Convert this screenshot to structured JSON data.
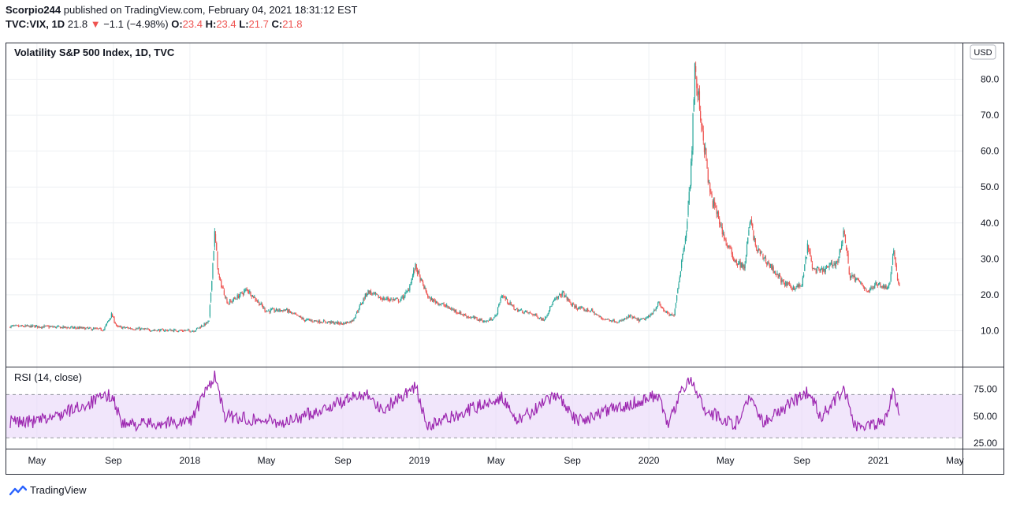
{
  "header": {
    "author": "Scorpio244",
    "published_text": "published on TradingView.com, February 04, 2021 18:31:12 EST",
    "symbol": "TVC:VIX, 1D",
    "last": "21.8",
    "change_arrow": "▼",
    "change": "−1.1 (−4.98%)",
    "open_label": "O:",
    "open": "23.4",
    "high_label": "H:",
    "high": "23.4",
    "low_label": "L:",
    "low": "21.7",
    "close_label": "C:",
    "close": "21.8"
  },
  "colors": {
    "up": "#26a69a",
    "down": "#ef5350",
    "rsi_line": "#9c27b0",
    "rsi_band": "#e8d5f8",
    "grid": "#eef0f3",
    "border": "#2a2e39"
  },
  "footer": {
    "brand": "TradingView",
    "logo_icon": "tradingview-logo-icon"
  },
  "chart_data": [
    {
      "type": "candlestick",
      "title": "Volatility S&P 500 Index, 1D, TVC",
      "currency": "USD",
      "y_ticks": [
        "10.0",
        "20.0",
        "30.0",
        "40.0",
        "50.0",
        "60.0",
        "70.0",
        "80.0"
      ],
      "ylim": [
        0,
        90
      ],
      "x_ticks": [
        "May",
        "Sep",
        "2018",
        "May",
        "Sep",
        "2019",
        "May",
        "Sep",
        "2020",
        "May",
        "Sep",
        "2021",
        "May"
      ],
      "x_tick_months": [
        0,
        4,
        8,
        12,
        16,
        20,
        24,
        28,
        32,
        36,
        40,
        44,
        48
      ],
      "x_range_months": [
        0,
        48.4
      ],
      "data_end_month": 45.1,
      "grid": true,
      "close_keyframes": [
        [
          0,
          11.2
        ],
        [
          2,
          10.8
        ],
        [
          3.5,
          10.3
        ],
        [
          3.9,
          14.5
        ],
        [
          4.2,
          11.0
        ],
        [
          6,
          10.2
        ],
        [
          8.2,
          10.0
        ],
        [
          9.0,
          12.5
        ],
        [
          9.3,
          37.3
        ],
        [
          9.5,
          25.0
        ],
        [
          10.0,
          17.5
        ],
        [
          11.0,
          21.5
        ],
        [
          12.0,
          15.5
        ],
        [
          13.0,
          15.8
        ],
        [
          14.0,
          13.0
        ],
        [
          15.0,
          12.5
        ],
        [
          16.0,
          12.0
        ],
        [
          16.5,
          12.8
        ],
        [
          17.3,
          21.0
        ],
        [
          18.0,
          19.0
        ],
        [
          19.0,
          18.5
        ],
        [
          19.4,
          21.0
        ],
        [
          19.8,
          28.0
        ],
        [
          20.0,
          25.0
        ],
        [
          20.5,
          19.0
        ],
        [
          21.5,
          16.5
        ],
        [
          22.5,
          14.0
        ],
        [
          23.5,
          12.5
        ],
        [
          24.0,
          14.0
        ],
        [
          24.3,
          20.0
        ],
        [
          25.0,
          16.0
        ],
        [
          26.0,
          14.5
        ],
        [
          26.5,
          13.0
        ],
        [
          27.0,
          18.0
        ],
        [
          27.5,
          20.5
        ],
        [
          28.0,
          17.0
        ],
        [
          28.5,
          16.0
        ],
        [
          29.0,
          15.5
        ],
        [
          29.5,
          13.5
        ],
        [
          30.5,
          12.5
        ],
        [
          31.0,
          14.0
        ],
        [
          31.5,
          12.8
        ],
        [
          32.0,
          13.7
        ],
        [
          32.5,
          17.5
        ],
        [
          33.0,
          14.5
        ],
        [
          33.3,
          14.0
        ],
        [
          33.6,
          25.0
        ],
        [
          34.0,
          40.0
        ],
        [
          34.2,
          54.5
        ],
        [
          34.4,
          82.7
        ],
        [
          34.8,
          66.0
        ],
        [
          35.2,
          48.0
        ],
        [
          35.6,
          42.0
        ],
        [
          36.0,
          35.0
        ],
        [
          36.5,
          29.5
        ],
        [
          37.0,
          27.5
        ],
        [
          37.3,
          41.0
        ],
        [
          37.6,
          33.0
        ],
        [
          38.0,
          30.5
        ],
        [
          38.5,
          27.0
        ],
        [
          39.0,
          23.5
        ],
        [
          39.5,
          22.0
        ],
        [
          40.0,
          22.5
        ],
        [
          40.3,
          33.5
        ],
        [
          40.6,
          27.0
        ],
        [
          41.0,
          26.5
        ],
        [
          41.5,
          28.0
        ],
        [
          41.9,
          29.5
        ],
        [
          42.2,
          38.0
        ],
        [
          42.5,
          25.5
        ],
        [
          43.0,
          23.5
        ],
        [
          43.5,
          21.0
        ],
        [
          44.0,
          23.5
        ],
        [
          44.3,
          22.0
        ],
        [
          44.6,
          23.0
        ],
        [
          44.8,
          33.1
        ],
        [
          45.0,
          24.0
        ],
        [
          45.1,
          21.8
        ]
      ]
    },
    {
      "type": "line",
      "title": "RSI (14, close)",
      "y_ticks": [
        "25.00",
        "50.00",
        "75.00"
      ],
      "ylim": [
        20,
        95
      ],
      "band": [
        30,
        70
      ],
      "keyframes": [
        [
          0,
          45
        ],
        [
          1,
          50
        ],
        [
          3.9,
          70
        ],
        [
          4.5,
          42
        ],
        [
          8,
          45
        ],
        [
          9.3,
          88
        ],
        [
          9.8,
          50
        ],
        [
          13,
          44
        ],
        [
          17.3,
          72
        ],
        [
          18,
          55
        ],
        [
          19.8,
          78
        ],
        [
          20.4,
          40
        ],
        [
          24.3,
          68
        ],
        [
          25,
          45
        ],
        [
          27.3,
          70
        ],
        [
          28.2,
          45
        ],
        [
          32.5,
          70
        ],
        [
          33,
          40
        ],
        [
          33.6,
          70
        ],
        [
          34.2,
          85
        ],
        [
          35,
          55
        ],
        [
          36.5,
          42
        ],
        [
          37.3,
          68
        ],
        [
          38,
          45
        ],
        [
          40.3,
          72
        ],
        [
          41,
          50
        ],
        [
          42.2,
          75
        ],
        [
          42.8,
          40
        ],
        [
          44.3,
          45
        ],
        [
          44.8,
          75
        ],
        [
          45.1,
          48
        ]
      ]
    }
  ]
}
